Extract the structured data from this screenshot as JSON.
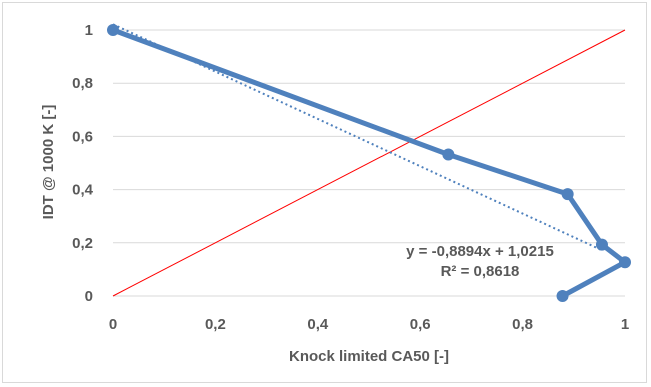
{
  "chart_data": {
    "type": "scatter",
    "xlabel": "Knock limited CA50 [-]",
    "ylabel": "IDT @ 1000 K [-]",
    "xlim": [
      0,
      1
    ],
    "ylim": [
      0,
      1
    ],
    "x_ticks": [
      "0",
      "0,2",
      "0,4",
      "0,6",
      "0,8",
      "1"
    ],
    "y_ticks": [
      "0",
      "0,2",
      "0,4",
      "0,6",
      "0,8",
      "1"
    ],
    "grid": "horizontal",
    "series": [
      {
        "color": "#4f81bd",
        "style": "thick line with circle markers",
        "x": [
          0,
          0.655,
          0.888,
          0.955,
          1.0,
          0.878
        ],
        "y": [
          1.0,
          0.532,
          0.383,
          0.193,
          0.127,
          0.0
        ]
      },
      {
        "color": "#4f81bd",
        "style": "dotted linear trendline",
        "x": [
          0,
          0.955
        ],
        "y": [
          1.0215,
          0.1721
        ]
      },
      {
        "color": "#ff0000",
        "style": "thin line",
        "x": [
          0,
          1
        ],
        "y": [
          0,
          1
        ]
      }
    ],
    "annotations": {
      "equation": "y = -0,8894x + 1,0215",
      "r_squared": "R² = 0,8618"
    }
  }
}
